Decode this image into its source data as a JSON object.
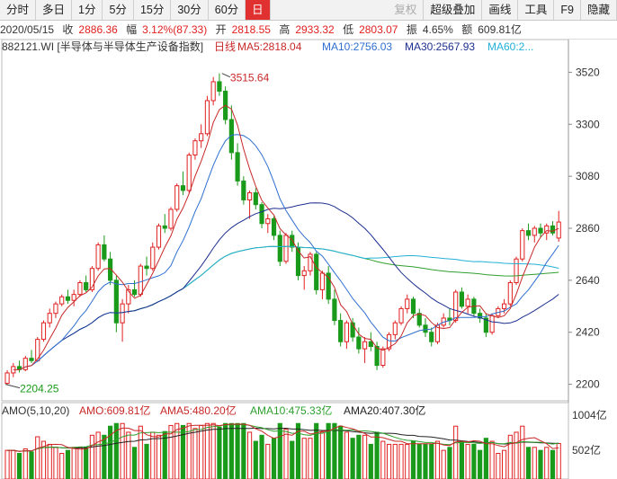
{
  "toolbar": {
    "items": [
      "分时",
      "多日",
      "1分",
      "5分",
      "15分",
      "30分",
      "60分",
      "日",
      "复权",
      "超级叠加",
      "画线",
      "工具",
      "F9",
      "隐藏"
    ],
    "active": "日"
  },
  "quote": {
    "date": "2020/05/15",
    "close_label": "收",
    "close": "2886.36",
    "change_label": "幅",
    "change": "3.12%(87.33)",
    "open_label": "开",
    "open": "2818.55",
    "high_label": "高",
    "high": "2933.32",
    "low_label": "低",
    "low": "2803.07",
    "amplitude_label": "振",
    "amplitude": "4.65%",
    "turnover_label": "额",
    "turnover": "609.81亿"
  },
  "legend": {
    "instrument": "882121.WI [半导体与半导体生产设备指数]",
    "period": "日线",
    "ma5": "MA5:2818.04",
    "ma10": "MA10:2756.03",
    "ma30": "MA30:2567.93",
    "ma60": "MA60:2..."
  },
  "volume_legend": {
    "title": "AMO(5,10,20)",
    "amo": "AMO:609.81亿",
    "ama5": "AMA5:480.20亿",
    "ama10": "AMA10:475.33亿",
    "ama20": "AMA20:407.30亿"
  },
  "annotations": {
    "high": "3515.64",
    "low": "2204.25"
  },
  "colors": {
    "up": "#e02020",
    "down": "#1a9a1a",
    "ma5": "#c82828",
    "ma10": "#2f6fd0",
    "ma30": "#1c2f8f",
    "ma60": "#22b0d8",
    "ma120": "#2ea02e"
  },
  "chart_data": {
    "type": "candlestick",
    "price_axis": {
      "ticks": [
        3520,
        3300,
        3080,
        2860,
        2640,
        2420,
        2200
      ],
      "ylim": [
        2130,
        3590
      ]
    },
    "volume_axis": {
      "ticks": [
        "1004亿",
        "502亿"
      ]
    },
    "series_ohlc": [
      [
        2204,
        2260,
        2200,
        2248
      ],
      [
        2248,
        2290,
        2230,
        2275
      ],
      [
        2275,
        2300,
        2250,
        2262
      ],
      [
        2262,
        2320,
        2255,
        2310
      ],
      [
        2310,
        2345,
        2290,
        2300
      ],
      [
        2300,
        2400,
        2295,
        2390
      ],
      [
        2390,
        2470,
        2380,
        2460
      ],
      [
        2460,
        2520,
        2440,
        2500
      ],
      [
        2500,
        2550,
        2480,
        2540
      ],
      [
        2540,
        2580,
        2530,
        2570
      ],
      [
        2570,
        2600,
        2540,
        2555
      ],
      [
        2555,
        2600,
        2530,
        2580
      ],
      [
        2580,
        2640,
        2570,
        2630
      ],
      [
        2630,
        2660,
        2590,
        2600
      ],
      [
        2600,
        2700,
        2590,
        2690
      ],
      [
        2690,
        2800,
        2680,
        2790
      ],
      [
        2790,
        2830,
        2720,
        2730
      ],
      [
        2730,
        2760,
        2620,
        2640
      ],
      [
        2640,
        2660,
        2420,
        2460
      ],
      [
        2460,
        2560,
        2380,
        2540
      ],
      [
        2540,
        2620,
        2500,
        2600
      ],
      [
        2600,
        2640,
        2570,
        2580
      ],
      [
        2580,
        2710,
        2570,
        2700
      ],
      [
        2700,
        2740,
        2660,
        2690
      ],
      [
        2690,
        2800,
        2680,
        2780
      ],
      [
        2780,
        2880,
        2770,
        2870
      ],
      [
        2870,
        2920,
        2840,
        2860
      ],
      [
        2860,
        2950,
        2850,
        2940
      ],
      [
        2940,
        3050,
        2930,
        3040
      ],
      [
        3040,
        3100,
        3000,
        3020
      ],
      [
        3020,
        3180,
        3010,
        3170
      ],
      [
        3170,
        3240,
        3150,
        3230
      ],
      [
        3230,
        3300,
        3200,
        3260
      ],
      [
        3260,
        3420,
        3250,
        3400
      ],
      [
        3400,
        3500,
        3380,
        3480
      ],
      [
        3480,
        3515,
        3420,
        3440
      ],
      [
        3440,
        3460,
        3300,
        3320
      ],
      [
        3320,
        3380,
        3150,
        3180
      ],
      [
        3180,
        3220,
        3040,
        3060
      ],
      [
        3060,
        3080,
        2960,
        2980
      ],
      [
        2980,
        3020,
        2900,
        3010
      ],
      [
        3010,
        3030,
        2940,
        2960
      ],
      [
        2960,
        2970,
        2860,
        2880
      ],
      [
        2880,
        2920,
        2840,
        2900
      ],
      [
        2900,
        2910,
        2810,
        2830
      ],
      [
        2830,
        2850,
        2700,
        2720
      ],
      [
        2720,
        2840,
        2710,
        2830
      ],
      [
        2830,
        2850,
        2760,
        2780
      ],
      [
        2780,
        2800,
        2640,
        2660
      ],
      [
        2660,
        2700,
        2600,
        2680
      ],
      [
        2680,
        2760,
        2660,
        2750
      ],
      [
        2750,
        2760,
        2580,
        2600
      ],
      [
        2600,
        2680,
        2560,
        2670
      ],
      [
        2670,
        2700,
        2540,
        2560
      ],
      [
        2560,
        2600,
        2450,
        2470
      ],
      [
        2470,
        2500,
        2360,
        2380
      ],
      [
        2380,
        2470,
        2350,
        2460
      ],
      [
        2460,
        2480,
        2380,
        2400
      ],
      [
        2400,
        2440,
        2330,
        2350
      ],
      [
        2350,
        2400,
        2290,
        2380
      ],
      [
        2380,
        2420,
        2340,
        2360
      ],
      [
        2360,
        2380,
        2260,
        2280
      ],
      [
        2280,
        2360,
        2270,
        2350
      ],
      [
        2350,
        2420,
        2340,
        2410
      ],
      [
        2410,
        2470,
        2390,
        2460
      ],
      [
        2460,
        2530,
        2450,
        2520
      ],
      [
        2520,
        2580,
        2500,
        2560
      ],
      [
        2560,
        2570,
        2480,
        2500
      ],
      [
        2500,
        2520,
        2440,
        2450
      ],
      [
        2450,
        2480,
        2400,
        2420
      ],
      [
        2420,
        2440,
        2360,
        2380
      ],
      [
        2380,
        2460,
        2370,
        2450
      ],
      [
        2450,
        2500,
        2440,
        2480
      ],
      [
        2480,
        2520,
        2450,
        2470
      ],
      [
        2470,
        2600,
        2460,
        2590
      ],
      [
        2590,
        2610,
        2520,
        2530
      ],
      [
        2530,
        2580,
        2500,
        2560
      ],
      [
        2560,
        2570,
        2490,
        2500
      ],
      [
        2500,
        2520,
        2460,
        2480
      ],
      [
        2480,
        2500,
        2400,
        2420
      ],
      [
        2420,
        2500,
        2410,
        2490
      ],
      [
        2490,
        2530,
        2480,
        2520
      ],
      [
        2520,
        2560,
        2500,
        2540
      ],
      [
        2540,
        2640,
        2530,
        2630
      ],
      [
        2630,
        2740,
        2620,
        2730
      ],
      [
        2730,
        2860,
        2720,
        2850
      ],
      [
        2850,
        2880,
        2810,
        2830
      ],
      [
        2830,
        2870,
        2800,
        2860
      ],
      [
        2860,
        2880,
        2820,
        2840
      ],
      [
        2840,
        2880,
        2810,
        2870
      ],
      [
        2870,
        2890,
        2830,
        2840
      ],
      [
        2818.55,
        2933.32,
        2803.07,
        2886.36
      ]
    ],
    "volume_max": 1004
  }
}
